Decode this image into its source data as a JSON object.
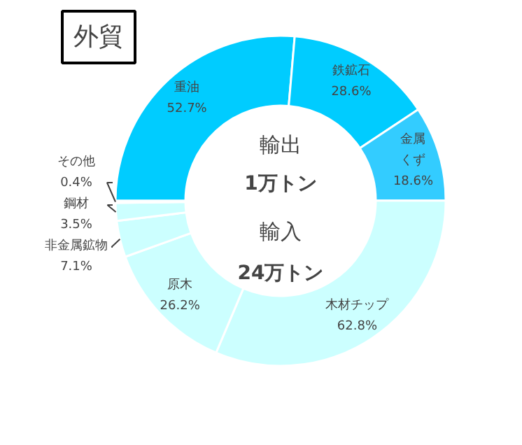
{
  "chart_data": {
    "type": "donut",
    "title": "外貿",
    "categories": [
      "重油",
      "鉄鉱石",
      "金属くず",
      "木材チップ",
      "原木",
      "非金属鉱物",
      "鋼材",
      "その他"
    ],
    "values": [
      52.7,
      28.6,
      18.6,
      62.8,
      26.2,
      7.1,
      3.5,
      0.4
    ],
    "value_labels": [
      "52.7%",
      "28.6%",
      "18.6%",
      "62.8%",
      "26.2%",
      "7.1%",
      "3.5%",
      "0.4%"
    ],
    "colors": [
      "#00ccff",
      "#00ccff",
      "#33ccff",
      "#ccffff",
      "#ccffff",
      "#ccffff",
      "#ccffff",
      "#ccffff"
    ],
    "annotations": [
      "輸出",
      "1万トン",
      "輸入",
      "24万トン"
    ]
  }
}
